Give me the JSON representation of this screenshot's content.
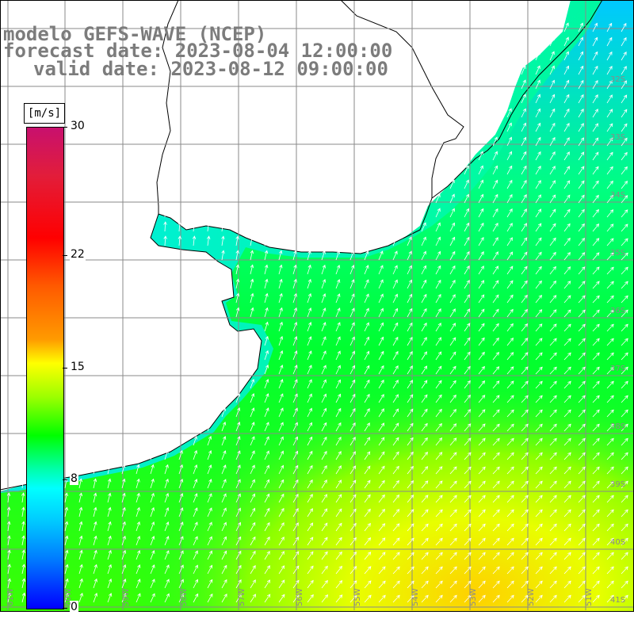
{
  "header": {
    "title_line1": "modelo GEFS-WAVE (NCEP)",
    "title_line2": "forecast date: 2023-08-04 12:00:00",
    "title_line3": "valid date: 2023-08-12 09:00:00"
  },
  "colorbar": {
    "unit": "[m/s]",
    "ticks": [
      {
        "label": "30",
        "value": 30
      },
      {
        "label": "22",
        "value": 22
      },
      {
        "label": "15",
        "value": 15
      },
      {
        "label": "8",
        "value": 8
      },
      {
        "label": "0",
        "value": 0
      }
    ],
    "range": [
      0,
      30
    ]
  },
  "map": {
    "lat_labels": [
      "32S",
      "33S",
      "34S",
      "35S",
      "36S",
      "37S",
      "38S",
      "39S",
      "40S",
      "41S"
    ],
    "lon_labels": [
      "61W",
      "60W",
      "59W",
      "58W",
      "57W",
      "56W",
      "55W",
      "54W",
      "53W",
      "52W",
      "51W"
    ],
    "colors": {
      "land": "#ffffff",
      "grid": "#8a8a8a",
      "coast": "#000000",
      "arrows": "#ffffff"
    }
  }
}
